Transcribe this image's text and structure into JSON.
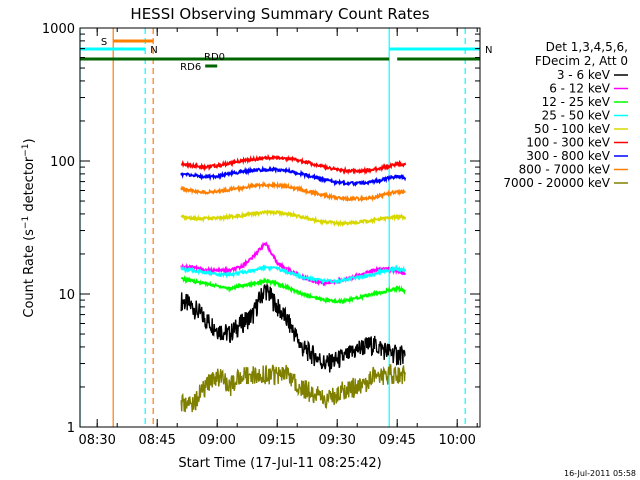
{
  "chart_data": {
    "type": "line",
    "title": "HESSI Observing Summary Count Rates",
    "xlabel": "Start Time (17-Jul-11 08:25:42)",
    "ylabel": "Count Rate (s⁻¹ detector⁻¹)",
    "ylabel_main": "Count Rate (s",
    "ylabel_sup1": "−1",
    "ylabel_mid": " detector",
    "ylabel_sup2": "−1",
    "ylabel_end": ")",
    "yscale": "log",
    "ylim": [
      1,
      1000
    ],
    "xlim": [
      "08:25:42",
      "10:05:42"
    ],
    "x_ticks": [
      "08:30",
      "08:45",
      "09:00",
      "09:15",
      "09:30",
      "09:45",
      "10:00"
    ],
    "y_ticks": [
      "1",
      "10",
      "100",
      "1000"
    ],
    "legend_placement": "right",
    "legend_header": [
      "Det 1,3,4,5,6,",
      "FDecim 2, Att 0"
    ],
    "timestamp": "16-Jul-2011 05:58",
    "series": [
      {
        "name": "3 - 6 keV",
        "color": "#000000",
        "x": [
          "08:51",
          "08:54",
          "08:57",
          "09:00",
          "09:03",
          "09:06",
          "09:09",
          "09:12",
          "09:15",
          "09:18",
          "09:21",
          "09:24",
          "09:27",
          "09:30",
          "09:33",
          "09:36",
          "09:39",
          "09:42",
          "09:45",
          "09:47"
        ],
        "values": [
          9,
          8,
          6.5,
          5.5,
          5,
          6,
          7,
          11,
          8,
          6,
          4,
          3.5,
          3,
          3.2,
          3.5,
          4,
          4.2,
          3.8,
          3.5,
          3.5
        ]
      },
      {
        "name": "6 - 12 keV",
        "color": "#ff00ff",
        "x": [
          "08:51",
          "08:54",
          "08:57",
          "09:00",
          "09:03",
          "09:06",
          "09:09",
          "09:12",
          "09:15",
          "09:18",
          "09:21",
          "09:24",
          "09:27",
          "09:30",
          "09:33",
          "09:36",
          "09:39",
          "09:42",
          "09:45",
          "09:47"
        ],
        "values": [
          16,
          16,
          15,
          15,
          15,
          16,
          19,
          24,
          17,
          15,
          13.5,
          12.5,
          12,
          12.5,
          13,
          14,
          15,
          15.5,
          15,
          14
        ]
      },
      {
        "name": "12 - 25 keV",
        "color": "#00ff00",
        "x": [
          "08:51",
          "08:54",
          "08:57",
          "09:00",
          "09:03",
          "09:06",
          "09:09",
          "09:12",
          "09:15",
          "09:18",
          "09:21",
          "09:24",
          "09:27",
          "09:30",
          "09:33",
          "09:36",
          "09:39",
          "09:42",
          "09:45",
          "09:47"
        ],
        "values": [
          13,
          12.5,
          12,
          11.5,
          11,
          11.5,
          12,
          12.5,
          12,
          11,
          10,
          9.5,
          9,
          8.8,
          9,
          9.5,
          10,
          10.5,
          11,
          10.5
        ]
      },
      {
        "name": "25 - 50 keV",
        "color": "#00ffff",
        "x": [
          "08:51",
          "08:54",
          "08:57",
          "09:00",
          "09:03",
          "09:06",
          "09:09",
          "09:12",
          "09:15",
          "09:18",
          "09:21",
          "09:24",
          "09:27",
          "09:30",
          "09:33",
          "09:36",
          "09:39",
          "09:42",
          "09:45",
          "09:47"
        ],
        "values": [
          15.5,
          15,
          14.5,
          14,
          14,
          14.5,
          15,
          16,
          15.5,
          14.5,
          13.5,
          13,
          12.5,
          12.5,
          13,
          13.5,
          14,
          15,
          15.5,
          15
        ]
      },
      {
        "name": "50 - 100 keV",
        "color": "#d8d800",
        "x": [
          "08:51",
          "08:54",
          "08:57",
          "09:00",
          "09:03",
          "09:06",
          "09:09",
          "09:12",
          "09:15",
          "09:18",
          "09:21",
          "09:24",
          "09:27",
          "09:30",
          "09:33",
          "09:36",
          "09:39",
          "09:42",
          "09:45",
          "09:47"
        ],
        "values": [
          38,
          37,
          37,
          37,
          38,
          39,
          40,
          41,
          41,
          40,
          38,
          36,
          35,
          34,
          34,
          35,
          36,
          37,
          38,
          38
        ]
      },
      {
        "name": "100 - 300 keV",
        "color": "#ff0000",
        "x": [
          "08:51",
          "08:54",
          "08:57",
          "09:00",
          "09:03",
          "09:06",
          "09:09",
          "09:12",
          "09:15",
          "09:18",
          "09:21",
          "09:24",
          "09:27",
          "09:30",
          "09:33",
          "09:36",
          "09:39",
          "09:42",
          "09:45",
          "09:47"
        ],
        "values": [
          95,
          92,
          90,
          92,
          96,
          100,
          103,
          105,
          106,
          104,
          100,
          95,
          90,
          86,
          84,
          84,
          86,
          90,
          95,
          93
        ]
      },
      {
        "name": "300 - 800 keV",
        "color": "#0000ff",
        "x": [
          "08:51",
          "08:54",
          "08:57",
          "09:00",
          "09:03",
          "09:06",
          "09:09",
          "09:12",
          "09:15",
          "09:18",
          "09:21",
          "09:24",
          "09:27",
          "09:30",
          "09:33",
          "09:36",
          "09:39",
          "09:42",
          "09:45",
          "09:47"
        ],
        "values": [
          80,
          78,
          76,
          77,
          80,
          83,
          85,
          86,
          86,
          84,
          80,
          76,
          72,
          69,
          68,
          68,
          70,
          73,
          77,
          75
        ]
      },
      {
        "name": "800 - 7000 keV",
        "color": "#ff7f00",
        "x": [
          "08:51",
          "08:54",
          "08:57",
          "09:00",
          "09:03",
          "09:06",
          "09:09",
          "09:12",
          "09:15",
          "09:18",
          "09:21",
          "09:24",
          "09:27",
          "09:30",
          "09:33",
          "09:36",
          "09:39",
          "09:42",
          "09:45",
          "09:47"
        ],
        "values": [
          62,
          60,
          58,
          59,
          61,
          63,
          65,
          66,
          66,
          64,
          61,
          58,
          55,
          53,
          52,
          52,
          53,
          56,
          59,
          58
        ]
      },
      {
        "name": "7000 - 20000 keV",
        "color": "#808000",
        "x": [
          "08:51",
          "08:54",
          "08:57",
          "09:00",
          "09:03",
          "09:06",
          "09:09",
          "09:12",
          "09:15",
          "09:18",
          "09:21",
          "09:24",
          "09:27",
          "09:30",
          "09:33",
          "09:36",
          "09:39",
          "09:42",
          "09:45",
          "09:47"
        ],
        "values": [
          1.5,
          1.5,
          2,
          2.5,
          2,
          2.5,
          2.5,
          2.5,
          2.5,
          2.5,
          2,
          1.8,
          1.6,
          1.8,
          2,
          2,
          2.5,
          2.5,
          2.5,
          2.5
        ]
      }
    ],
    "flag_bars": [
      {
        "label": "S",
        "color": "#ff7f00",
        "start": "08:34",
        "end": "08:44",
        "level": "top"
      },
      {
        "label": "N",
        "color": "#00ffff",
        "start": "08:25:42",
        "end": "08:42",
        "level": "mid"
      },
      {
        "label": "N",
        "color": "#00ffff",
        "start": "09:43",
        "end": "10:05:42",
        "level": "mid"
      },
      {
        "label": "RD0",
        "color": "#006400",
        "start": "08:25:42",
        "end": "09:43",
        "level": "low"
      },
      {
        "label": "RD6",
        "color": "#006400",
        "start": "08:57",
        "end": "09:00",
        "level": "lower"
      },
      {
        "label": "",
        "color": "#006400",
        "start": "09:45",
        "end": "10:05:42",
        "level": "low"
      }
    ],
    "vertical_lines": [
      {
        "time": "08:25:42",
        "color": "#00ffff",
        "style": "solid"
      },
      {
        "time": "08:34",
        "color": "#ff7f00",
        "style": "solid"
      },
      {
        "time": "08:42",
        "color": "#00ffff",
        "style": "dashed"
      },
      {
        "time": "08:44",
        "color": "#ff7f00",
        "style": "dashed"
      },
      {
        "time": "09:43",
        "color": "#00ffff",
        "style": "solid"
      },
      {
        "time": "10:02",
        "color": "#00ffff",
        "style": "dashed"
      }
    ]
  }
}
